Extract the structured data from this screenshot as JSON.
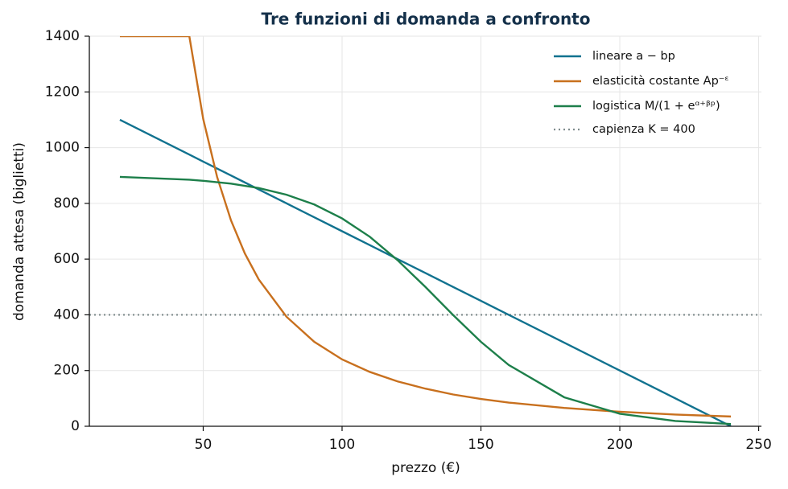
{
  "chart_data": {
    "type": "line",
    "title": "Tre funzioni di domanda a confronto",
    "x_label": "prezzo (€)",
    "y_label": "domanda attesa (biglietti)",
    "x": [
      20,
      45,
      50,
      55,
      60,
      65,
      70,
      80,
      90,
      100,
      110,
      120,
      130,
      140,
      150,
      160,
      180,
      200,
      220,
      240
    ],
    "series": [
      {
        "name": "lineare a − bp",
        "color": "#11728f",
        "values": [
          1100,
          975,
          950,
          925,
          900,
          875,
          850,
          800,
          750,
          700,
          650,
          600,
          550,
          500,
          450,
          400,
          300,
          200,
          100,
          0
        ]
      },
      {
        "name": "elasticità costante Ap⁻ᵋ",
        "color": "#c8701e",
        "values": [
          1400,
          1400,
          1103,
          895,
          739,
          620,
          527,
          393,
          303,
          240,
          195,
          161,
          135,
          114,
          98,
          85,
          66,
          52,
          42,
          35
        ]
      },
      {
        "name": "logistica M/(1 + eᵅ⁺ᵝᵖ)",
        "color": "#1d7f4a",
        "values": [
          895,
          885,
          881,
          876,
          871,
          863,
          855,
          831,
          796,
          746,
          680,
          596,
          500,
          399,
          303,
          220,
          104,
          45,
          19,
          8
        ]
      }
    ],
    "hline": {
      "name": "capienza K = 400",
      "value": 400,
      "color": "#7f8c8d"
    },
    "xlim": [
      9,
      251
    ],
    "ylim": [
      0,
      1400
    ],
    "xticks": [
      50,
      100,
      150,
      200,
      250
    ],
    "yticks": [
      0,
      200,
      400,
      600,
      800,
      1000,
      1200,
      1400
    ],
    "grid": true,
    "legend": "upper right"
  }
}
